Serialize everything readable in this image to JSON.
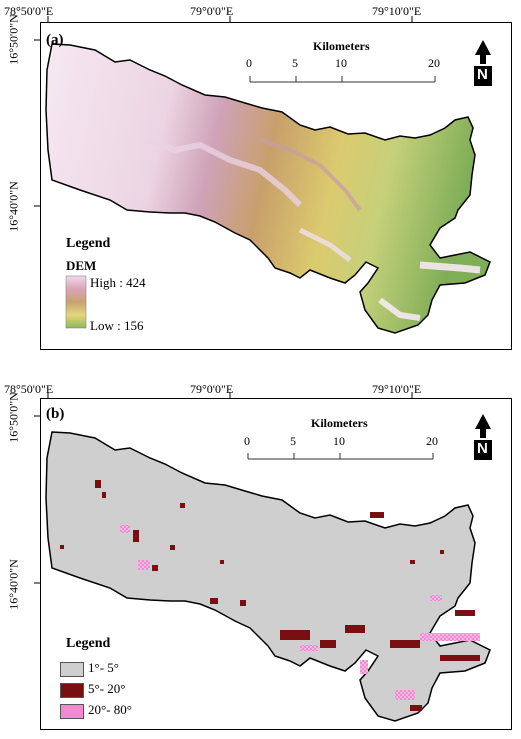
{
  "coords": {
    "top_x": [
      "78°50'0\"E",
      "79°0'0\"E",
      "79°10'0\"E"
    ],
    "left_y": [
      "16°50'0\"N",
      "16°40'0\"N"
    ]
  },
  "panel_a": {
    "label": "(a)",
    "scale_title": "Kilometers",
    "scale_ticks": [
      "0",
      "5",
      "10",
      "20"
    ],
    "north": "N",
    "legend_title": "Legend",
    "legend_sub": "DEM",
    "high_label": "High : 424",
    "low_label": "Low : 156",
    "ramp_colors": [
      "#f3d9ea",
      "#d9a3b7",
      "#c9a373",
      "#e3d67a",
      "#8eb85c"
    ]
  },
  "panel_b": {
    "label": "(b)",
    "scale_title": "Kilometers",
    "scale_ticks": [
      "0",
      "5",
      "10",
      "20"
    ],
    "north": "N",
    "legend_title": "Legend",
    "classes": [
      {
        "label": "1°- 5°",
        "color": "#cfcfcf"
      },
      {
        "label": "5°- 20°",
        "color": "#7a0f12"
      },
      {
        "label": "20°- 80°",
        "color": "#f28ad2"
      }
    ]
  }
}
